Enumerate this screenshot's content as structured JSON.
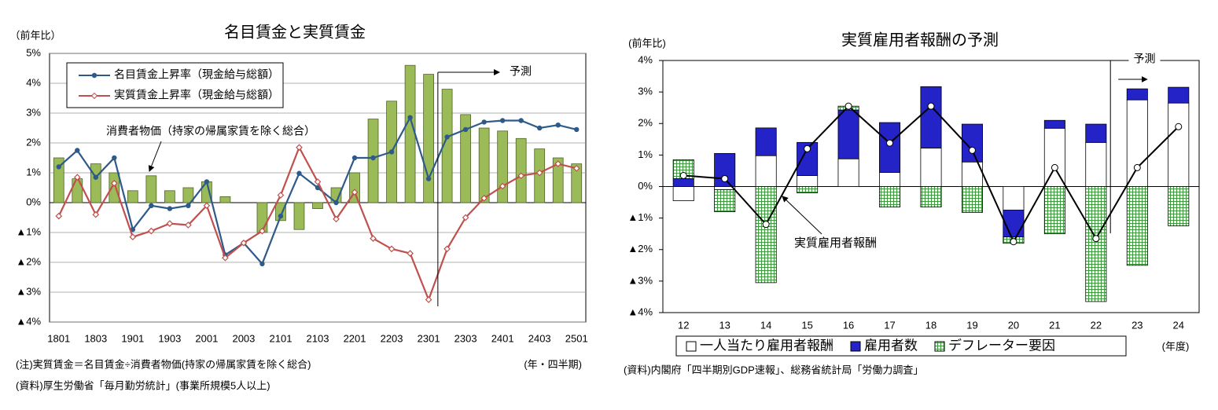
{
  "chart_data": [
    {
      "type": "combo",
      "title": "名目賃金と実質賃金",
      "unit_label": "（前年比）",
      "x_unit": "(年・四半期)",
      "forecast_label": "予測",
      "notes": [
        "(注)実質賃金＝名目賃金÷消費者物価(持家の帰属家賃を除く総合)",
        "(資料)厚生労働省「毎月勤労統計」(事業所規模5人以上)"
      ],
      "categories": [
        "1801",
        null,
        "1803",
        null,
        "1901",
        null,
        "1903",
        null,
        "2001",
        null,
        "2003",
        null,
        "2101",
        null,
        "2103",
        null,
        "2201",
        null,
        "2203",
        null,
        "2301",
        null,
        "2303",
        null,
        "2401",
        null,
        "2403",
        null,
        "2501"
      ],
      "ylim": [
        -4,
        5
      ],
      "yticks": [
        {
          "value": -4,
          "label": "▲4%"
        },
        {
          "value": -3,
          "label": "▲3%"
        },
        {
          "value": -2,
          "label": "▲2%"
        },
        {
          "value": -1,
          "label": "▲1%"
        },
        {
          "value": 0,
          "label": "0%"
        },
        {
          "value": 1,
          "label": "1%"
        },
        {
          "value": 2,
          "label": "2%"
        },
        {
          "value": 3,
          "label": "3%"
        },
        {
          "value": 4,
          "label": "4%"
        },
        {
          "value": 5,
          "label": "5%"
        }
      ],
      "grid": true,
      "legend": "upper left",
      "series": [
        {
          "name": "消費者物価（持家の帰属家賃を除く総合）",
          "type": "bar",
          "color": "#9bbb59",
          "values": [
            1.5,
            0.8,
            1.3,
            1.0,
            0.4,
            0.9,
            0.4,
            0.5,
            0.7,
            0.2,
            0.0,
            -1.0,
            -0.6,
            -0.9,
            -0.2,
            0.5,
            1.0,
            2.8,
            3.4,
            4.6,
            4.3,
            3.8,
            2.95,
            2.5,
            2.4,
            2.15,
            1.8,
            1.5,
            1.3
          ]
        },
        {
          "name": "名目賃金上昇率（現金給与総額）",
          "type": "line",
          "color": "#2e5a8a",
          "marker": "circle",
          "values": [
            1.2,
            1.75,
            0.85,
            1.5,
            -0.9,
            -0.1,
            -0.2,
            -0.1,
            0.7,
            -1.75,
            -1.35,
            -2.05,
            -0.45,
            0.98,
            0.5,
            0.0,
            1.5,
            1.5,
            1.7,
            2.85,
            0.8,
            2.2,
            2.45,
            2.7,
            2.75,
            2.75,
            2.5,
            2.6,
            2.45
          ]
        },
        {
          "name": "実質賃金上昇率（現金給与総額）",
          "type": "line",
          "color": "#c0504d",
          "marker": "diamond",
          "values": [
            -0.45,
            0.85,
            -0.4,
            0.65,
            -1.15,
            -0.95,
            -0.7,
            -0.75,
            -0.1,
            -1.85,
            -1.35,
            -0.95,
            0.25,
            1.85,
            0.7,
            -0.55,
            0.35,
            -1.2,
            -1.55,
            -1.7,
            -3.25,
            -1.55,
            -0.5,
            0.15,
            0.55,
            0.9,
            1.0,
            1.3,
            1.15
          ]
        }
      ]
    },
    {
      "type": "combo",
      "stacked": true,
      "title": "実質雇用者報酬の予測",
      "unit_label": "(前年比)",
      "x_unit": "(年度)",
      "forecast_label": "予測",
      "notes": [
        "(資料)内閣府「四半期別GDP速報」、総務省統計局「労働力調査」"
      ],
      "categories": [
        "12",
        "13",
        "14",
        "15",
        "16",
        "17",
        "18",
        "19",
        "20",
        "21",
        "22",
        "23",
        "24"
      ],
      "ylim": [
        -4,
        4
      ],
      "yticks": [
        {
          "value": -4,
          "label": "▲4%"
        },
        {
          "value": -3,
          "label": "▲3%"
        },
        {
          "value": -2,
          "label": "▲2%"
        },
        {
          "value": -1,
          "label": "▲1%"
        },
        {
          "value": 0,
          "label": "0%"
        },
        {
          "value": 1,
          "label": "1%"
        },
        {
          "value": 2,
          "label": "2%"
        },
        {
          "value": 3,
          "label": "3%"
        },
        {
          "value": 4,
          "label": "4%"
        }
      ],
      "grid": false,
      "legend": "bottom",
      "series": [
        {
          "name": "一人当たり雇用者報酬",
          "type": "bar",
          "color": "#ffffff",
          "values": [
            -0.45,
            -0.1,
            0.98,
            0.35,
            0.88,
            0.45,
            1.22,
            0.78,
            -0.75,
            1.85,
            1.4,
            2.75,
            2.65
          ]
        },
        {
          "name": "雇用者数",
          "type": "bar",
          "color": "#2323c8",
          "values": [
            0.25,
            1.05,
            0.88,
            1.05,
            1.55,
            1.58,
            1.95,
            1.2,
            -0.85,
            0.25,
            0.58,
            0.35,
            0.5
          ]
        },
        {
          "name": "デフレーター要因",
          "type": "bar",
          "color": "#3c9a3c",
          "pattern": "grid",
          "values": [
            0.6,
            -0.7,
            -3.05,
            -0.2,
            0.12,
            -0.65,
            -0.65,
            -0.82,
            -0.2,
            -1.5,
            -3.65,
            -2.5,
            -1.25
          ]
        },
        {
          "name": "実質雇用者報酬",
          "type": "line",
          "color": "#000000",
          "marker": "open-circle",
          "values": [
            0.35,
            0.25,
            -1.2,
            1.2,
            2.55,
            1.38,
            2.55,
            1.15,
            -1.75,
            0.6,
            -1.65,
            0.6,
            1.9
          ]
        }
      ]
    }
  ]
}
